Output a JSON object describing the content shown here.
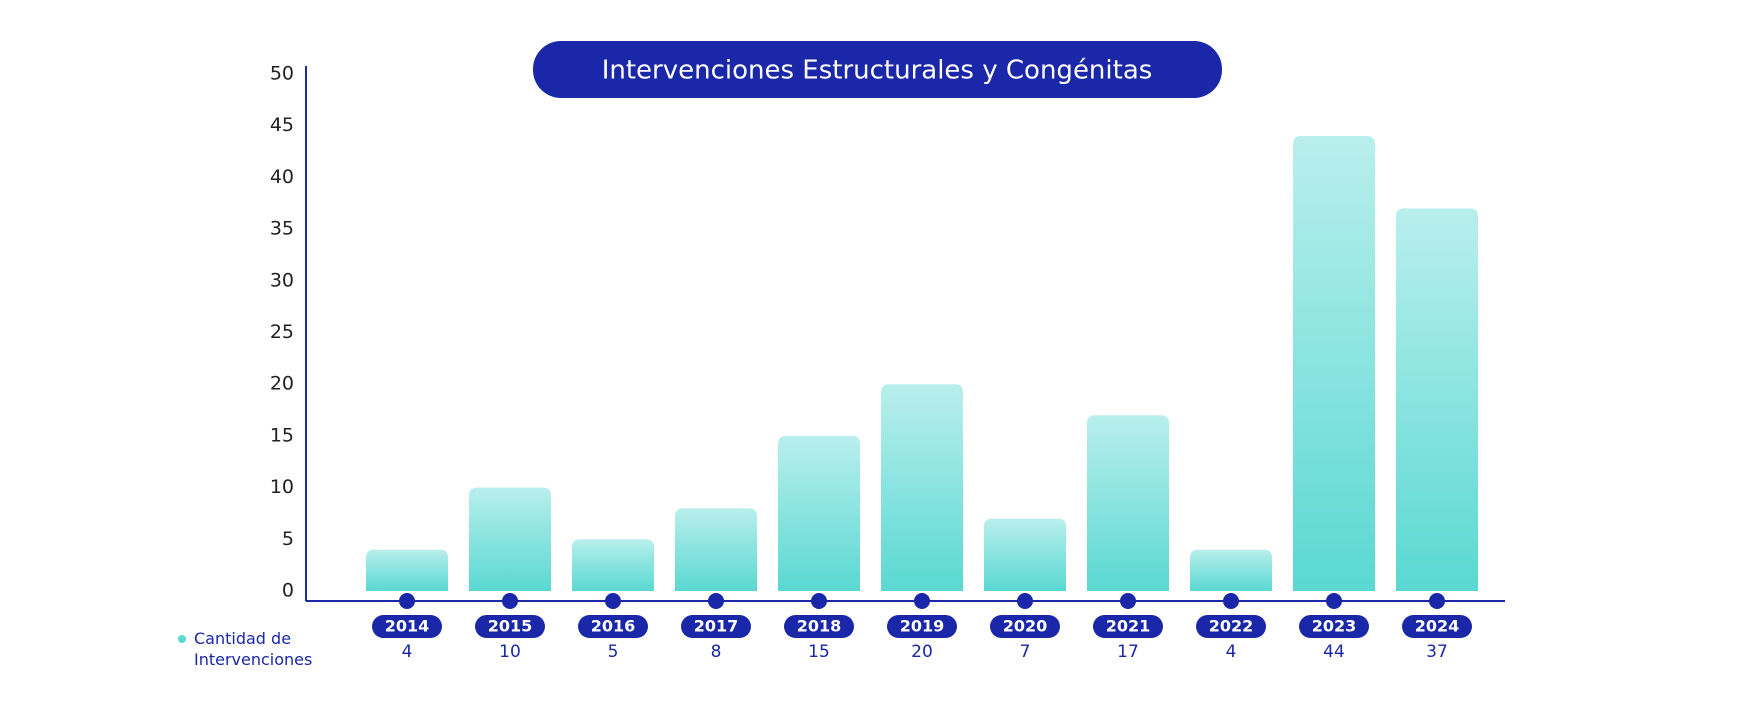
{
  "chart_data": {
    "type": "bar",
    "title": "Intervenciones Estructurales y Congénitas",
    "categories": [
      "2014",
      "2015",
      "2016",
      "2017",
      "2018",
      "2019",
      "2020",
      "2021",
      "2022",
      "2023",
      "2024"
    ],
    "series": [
      {
        "name": "Cantidad de Intervenciones",
        "color": "#5ad8d2",
        "values": [
          4,
          10,
          5,
          8,
          15,
          20,
          7,
          17,
          4,
          44,
          37
        ]
      }
    ],
    "ylim": [
      0,
      50
    ],
    "yticks": [
      0,
      5,
      10,
      15,
      20,
      25,
      30,
      35,
      40,
      45,
      50
    ],
    "grid": false,
    "legend": "bottom-left",
    "accent_color": "#1a27a8"
  }
}
